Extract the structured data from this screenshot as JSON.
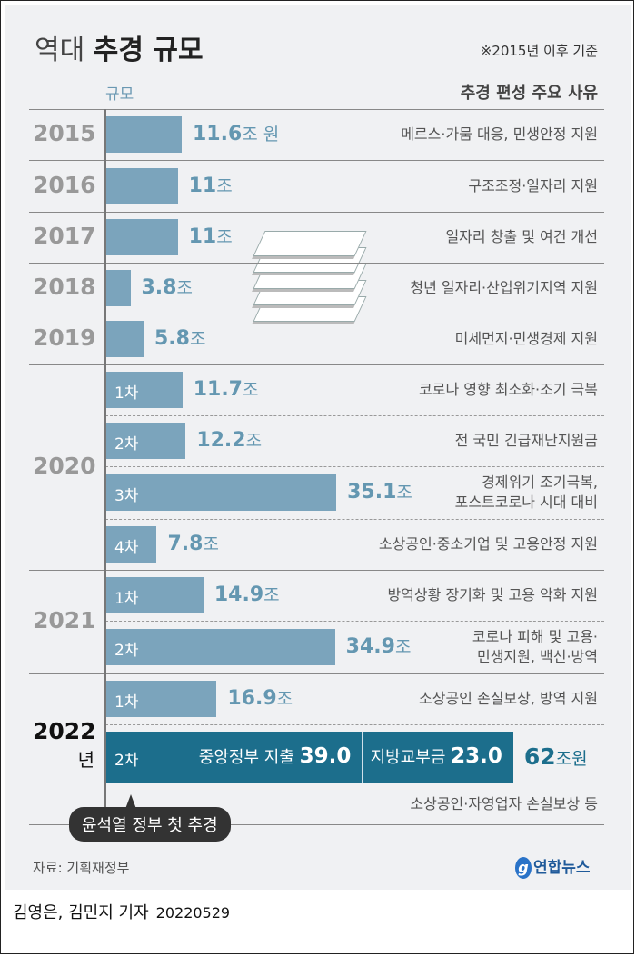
{
  "title": {
    "light": "역대",
    "bold": "추경 규모"
  },
  "note": "※2015년 이후 기준",
  "column_headers": {
    "scale": "규모",
    "reason": "추경 편성 주요 사유"
  },
  "chart_data": {
    "type": "bar",
    "orientation": "horizontal",
    "unit": "조 원",
    "rows": [
      {
        "year": "2015",
        "round": "",
        "value": 11.6,
        "value_text": "11.6",
        "unit": "조 원",
        "reason": [
          "메르스·가뭄 대응, 민생안정 지원"
        ]
      },
      {
        "year": "2016",
        "round": "",
        "value": 11,
        "value_text": "11",
        "unit": "조",
        "reason": [
          "구조조정·일자리 지원"
        ]
      },
      {
        "year": "2017",
        "round": "",
        "value": 11,
        "value_text": "11",
        "unit": "조",
        "reason": [
          "일자리 창출 및 여건 개선"
        ]
      },
      {
        "year": "2018",
        "round": "",
        "value": 3.8,
        "value_text": "3.8",
        "unit": "조",
        "reason": [
          "청년 일자리·산업위기지역 지원"
        ]
      },
      {
        "year": "2019",
        "round": "",
        "value": 5.8,
        "value_text": "5.8",
        "unit": "조",
        "reason": [
          "미세먼지·민생경제 지원"
        ]
      },
      {
        "year": "2020",
        "round": "1차",
        "value": 11.7,
        "value_text": "11.7",
        "unit": "조",
        "reason": [
          "코로나 영향 최소화·조기 극복"
        ]
      },
      {
        "year": "2020",
        "round": "2차",
        "value": 12.2,
        "value_text": "12.2",
        "unit": "조",
        "reason": [
          "전 국민 긴급재난지원금"
        ]
      },
      {
        "year": "2020",
        "round": "3차",
        "value": 35.1,
        "value_text": "35.1",
        "unit": "조",
        "reason": [
          "경제위기 조기극복,",
          "포스트코로나 시대 대비"
        ]
      },
      {
        "year": "2020",
        "round": "4차",
        "value": 7.8,
        "value_text": "7.8",
        "unit": "조",
        "reason": [
          "소상공인·중소기업 및 고용안정 지원"
        ]
      },
      {
        "year": "2021",
        "round": "1차",
        "value": 14.9,
        "value_text": "14.9",
        "unit": "조",
        "reason": [
          "방역상황 장기화 및 고용 악화 지원"
        ]
      },
      {
        "year": "2021",
        "round": "2차",
        "value": 34.9,
        "value_text": "34.9",
        "unit": "조",
        "reason": [
          "코로나 피해 및 고용·",
          "민생지원, 백신·방역"
        ]
      },
      {
        "year": "2022",
        "round": "1차",
        "value": 16.9,
        "value_text": "16.9",
        "unit": "조",
        "reason": [
          "소상공인 손실보상, 방역 지원"
        ]
      },
      {
        "year": "2022",
        "round": "2차",
        "value": 62,
        "value_text": "62",
        "unit": "조원",
        "reason": [
          "소상공인·자영업자 손실보상 등"
        ],
        "segments": [
          {
            "name": "중앙정부 지출",
            "value": 39.0,
            "value_text": "39.0"
          },
          {
            "name": "지방교부금",
            "value": 23.0,
            "value_text": "23.0"
          }
        ]
      }
    ],
    "year_labels": [
      {
        "year": "2015"
      },
      {
        "year": "2016"
      },
      {
        "year": "2017"
      },
      {
        "year": "2018"
      },
      {
        "year": "2019"
      },
      {
        "year": "2020"
      },
      {
        "year": "2021"
      },
      {
        "year": "2022",
        "suffix": "년"
      }
    ],
    "colors": {
      "bar": "#7ba4bc",
      "current_bar": "#1c6e8c",
      "value_text": "#6497b1"
    }
  },
  "callout": "윤석열 정부 첫 추경",
  "source": "자료: 기획재정부",
  "logo": "연합뉴스",
  "byline": {
    "authors": "김영은, 김민지 기자",
    "date": "20220529"
  }
}
